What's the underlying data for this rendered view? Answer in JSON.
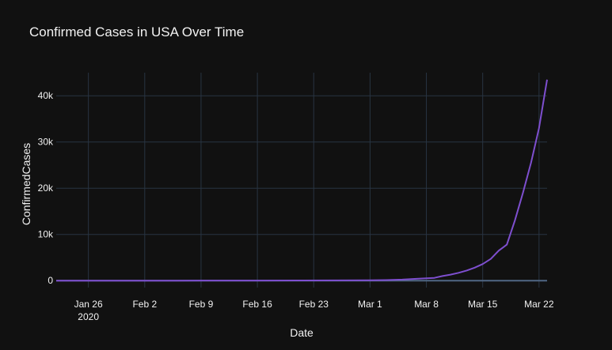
{
  "chart_data": {
    "type": "line",
    "title": "Confirmed Cases in USA Over Time",
    "xlabel": "Date",
    "ylabel": "ConfirmedCases",
    "x_start": "2020-01-22",
    "x_end": "2020-03-23",
    "xlim": [
      "2020-01-22",
      "2020-03-23"
    ],
    "ylim": [
      -1500,
      45000
    ],
    "grid": true,
    "x_ticks": [
      {
        "date": "2020-01-26",
        "label": "Jan 26",
        "sublabel": "2020"
      },
      {
        "date": "2020-02-02",
        "label": "Feb 2"
      },
      {
        "date": "2020-02-09",
        "label": "Feb 9"
      },
      {
        "date": "2020-02-16",
        "label": "Feb 16"
      },
      {
        "date": "2020-02-23",
        "label": "Feb 23"
      },
      {
        "date": "2020-03-01",
        "label": "Mar 1"
      },
      {
        "date": "2020-03-08",
        "label": "Mar 8"
      },
      {
        "date": "2020-03-15",
        "label": "Mar 15"
      },
      {
        "date": "2020-03-22",
        "label": "Mar 22"
      }
    ],
    "y_ticks": [
      {
        "value": 0,
        "label": "0"
      },
      {
        "value": 10000,
        "label": "10k"
      },
      {
        "value": 20000,
        "label": "20k"
      },
      {
        "value": 30000,
        "label": "30k"
      },
      {
        "value": 40000,
        "label": "40k"
      }
    ],
    "series": [
      {
        "name": "",
        "color": "#7e4fcf",
        "x": [
          "2020-01-22",
          "2020-01-27",
          "2020-02-01",
          "2020-02-06",
          "2020-02-11",
          "2020-02-16",
          "2020-02-21",
          "2020-02-26",
          "2020-03-01",
          "2020-03-03",
          "2020-03-05",
          "2020-03-07",
          "2020-03-09",
          "2020-03-10",
          "2020-03-11",
          "2020-03-12",
          "2020-03-13",
          "2020-03-14",
          "2020-03-15",
          "2020-03-16",
          "2020-03-17",
          "2020-03-18",
          "2020-03-19",
          "2020-03-20",
          "2020-03-21",
          "2020-03-22",
          "2020-03-23"
        ],
        "values": [
          1,
          5,
          8,
          12,
          13,
          15,
          35,
          60,
          80,
          120,
          220,
          420,
          600,
          1000,
          1300,
          1700,
          2200,
          2800,
          3600,
          4700,
          6500,
          7800,
          13000,
          19000,
          25500,
          33000,
          43500
        ]
      }
    ]
  }
}
